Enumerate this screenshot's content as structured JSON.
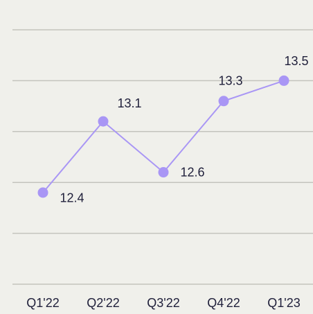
{
  "chart_data": {
    "type": "line",
    "categories": [
      "Q1'22",
      "Q2'22",
      "Q3'22",
      "Q4'22",
      "Q1'23"
    ],
    "values": [
      12.4,
      13.1,
      12.6,
      13.3,
      13.5
    ],
    "color": "#a996f5",
    "ylim": [
      11.5,
      14.0
    ],
    "yticks": [
      11.5,
      12.0,
      12.5,
      13.0,
      13.5,
      14.0
    ],
    "grid": true
  }
}
